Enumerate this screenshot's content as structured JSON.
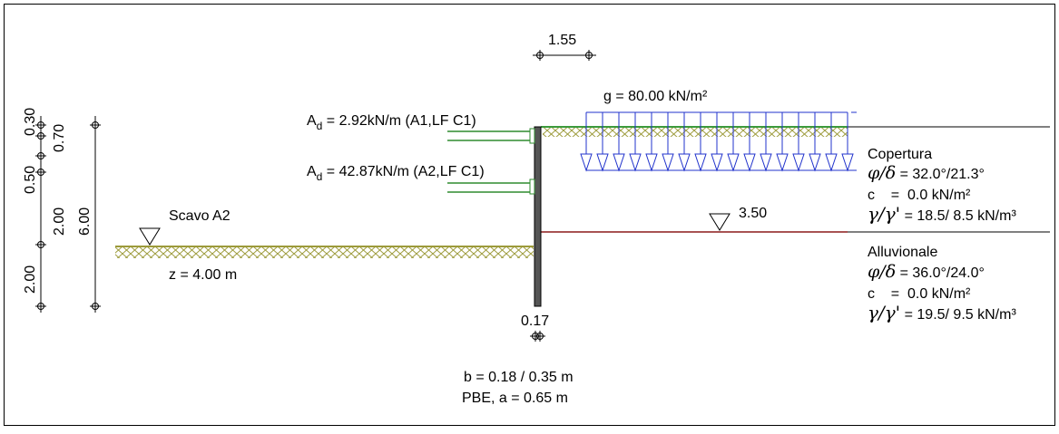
{
  "dimensions": {
    "top_width": "1.55",
    "wall_thickness": "0.17",
    "left_vertical": [
      "0.30",
      "0.70",
      "0.50",
      "2.00",
      "6.00",
      "2.00"
    ]
  },
  "surcharge": {
    "label": "g = 80.00 kN/m²"
  },
  "anchors": [
    {
      "prefix": "A",
      "sub": "d",
      "text": " = 2.92kN/m (A1,LF C1)"
    },
    {
      "prefix": "A",
      "sub": "d",
      "text": " = 42.87kN/m (A2,LF C1)"
    }
  ],
  "excavation": {
    "name": "Scavo A2",
    "depth": "z =  4.00 m"
  },
  "water_level": "3.50",
  "layers": [
    {
      "name": "Copertura",
      "phi_sym": "φ/δ",
      "phi": " = 32.0°/21.3°",
      "c_sym": "c",
      "c": "    =  0.0 kN/m²",
      "gamma_sym": "γ/γ'",
      "gamma": " = 18.5/ 8.5 kN/m³"
    },
    {
      "name": "Alluvionale",
      "phi_sym": "φ/δ",
      "phi": " = 36.0°/24.0°",
      "c_sym": "c",
      "c": "    =  0.0 kN/m²",
      "gamma_sym": "γ/γ'",
      "gamma": " = 19.5/ 9.5 kN/m³"
    }
  ],
  "wall": {
    "section": "b = 0.18 / 0.35 m",
    "type": "PBE, a = 0.65 m"
  },
  "colors": {
    "soil": "#9c9a3a",
    "surface": "#3c9a3c",
    "water_line": "#8b1a1a",
    "load": "#2233cc",
    "anchor": "#2e8b2e"
  }
}
